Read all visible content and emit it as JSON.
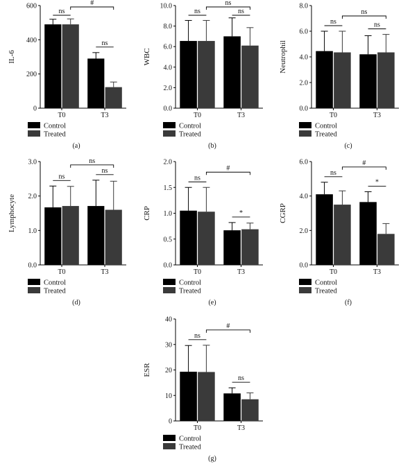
{
  "figure": {
    "legend": [
      "Control",
      "Treated"
    ],
    "colors": {
      "control": "#000000",
      "treated": "#3a3a3a"
    }
  },
  "chart_data": [
    {
      "panel": "(a)",
      "type": "bar",
      "ylabel": "IL-6",
      "categories": [
        "T0",
        "T3"
      ],
      "ylim": [
        0,
        600
      ],
      "yticks": [
        "0",
        "200",
        "400",
        "600"
      ],
      "series": [
        {
          "name": "Control",
          "values": [
            490,
            290
          ],
          "errors": [
            30,
            35
          ]
        },
        {
          "name": "Treated",
          "values": [
            490,
            123
          ],
          "errors": [
            32,
            30
          ]
        }
      ],
      "annotations": [
        {
          "text": "ns",
          "between": "Control T0 vs Treated T0"
        },
        {
          "text": "ns",
          "between": "Control T3 vs Treated T3"
        },
        {
          "text": "#",
          "between": "Treated T0 vs Treated T3"
        }
      ]
    },
    {
      "panel": "(b)",
      "type": "bar",
      "ylabel": "WBC",
      "categories": [
        "T0",
        "T3"
      ],
      "ylim": [
        0,
        10
      ],
      "yticks": [
        "0.0",
        "2.0",
        "4.0",
        "6.0",
        "8.0",
        "10.0"
      ],
      "series": [
        {
          "name": "Control",
          "values": [
            6.55,
            7.0
          ],
          "errors": [
            2.0,
            1.8
          ]
        },
        {
          "name": "Treated",
          "values": [
            6.55,
            6.1
          ],
          "errors": [
            2.0,
            1.75
          ]
        }
      ],
      "annotations": [
        {
          "text": "ns",
          "between": "Control T0 vs Treated T0"
        },
        {
          "text": "ns",
          "between": "Control T3 vs Treated T3"
        },
        {
          "text": "ns",
          "between": "Treated T0 vs Treated T3"
        }
      ]
    },
    {
      "panel": "(c)",
      "type": "bar",
      "ylabel": "Neutrophil",
      "categories": [
        "T0",
        "T3"
      ],
      "ylim": [
        0,
        8
      ],
      "yticks": [
        "0.0",
        "2.0",
        "4.0",
        "6.0",
        "8.0"
      ],
      "series": [
        {
          "name": "Control",
          "values": [
            4.45,
            4.2
          ],
          "errors": [
            1.55,
            1.45
          ]
        },
        {
          "name": "Treated",
          "values": [
            4.35,
            4.35
          ],
          "errors": [
            1.65,
            1.4
          ]
        }
      ],
      "annotations": [
        {
          "text": "ns",
          "between": "Control T0 vs Treated T0"
        },
        {
          "text": "ns",
          "between": "Control T3 vs Treated T3"
        },
        {
          "text": "ns",
          "between": "Treated T0 vs Treated T3"
        }
      ]
    },
    {
      "panel": "(d)",
      "type": "bar",
      "ylabel": "Lymphocyte",
      "categories": [
        "T0",
        "T3"
      ],
      "ylim": [
        0,
        3
      ],
      "yticks": [
        "0.0",
        "1.0",
        "2.0",
        "3.0"
      ],
      "series": [
        {
          "name": "Control",
          "values": [
            1.67,
            1.71
          ],
          "errors": [
            0.62,
            0.75
          ]
        },
        {
          "name": "Treated",
          "values": [
            1.71,
            1.6
          ],
          "errors": [
            0.57,
            0.83
          ]
        }
      ],
      "annotations": [
        {
          "text": "ns",
          "between": "Control T0 vs Treated T0"
        },
        {
          "text": "ns",
          "between": "Control T3 vs Treated T3"
        },
        {
          "text": "ns",
          "between": "Treated T0 vs Treated T3"
        }
      ]
    },
    {
      "panel": "(e)",
      "type": "bar",
      "ylabel": "CRP",
      "categories": [
        "T0",
        "T3"
      ],
      "ylim": [
        0,
        2
      ],
      "yticks": [
        "0.0",
        "0.5",
        "1.0",
        "1.5",
        "2.0"
      ],
      "series": [
        {
          "name": "Control",
          "values": [
            1.05,
            0.67
          ],
          "errors": [
            0.45,
            0.15
          ]
        },
        {
          "name": "Treated",
          "values": [
            1.03,
            0.69
          ],
          "errors": [
            0.47,
            0.12
          ]
        }
      ],
      "annotations": [
        {
          "text": "ns",
          "between": "Control T0 vs Treated T0"
        },
        {
          "text": "*",
          "between": "Control T3 vs Treated T3"
        },
        {
          "text": "#",
          "between": "Treated T0 vs Treated T3"
        }
      ]
    },
    {
      "panel": "(f)",
      "type": "bar",
      "ylabel": "CGRP",
      "categories": [
        "T0",
        "T3"
      ],
      "ylim": [
        0,
        6
      ],
      "yticks": [
        "0.0",
        "2.0",
        "4.0",
        "6.0"
      ],
      "series": [
        {
          "name": "Control",
          "values": [
            4.1,
            3.65
          ],
          "errors": [
            0.7,
            0.6
          ]
        },
        {
          "name": "Treated",
          "values": [
            3.5,
            1.8
          ],
          "errors": [
            0.8,
            0.6
          ]
        }
      ],
      "annotations": [
        {
          "text": "ns",
          "between": "Control T0 vs Treated T0"
        },
        {
          "text": "*",
          "between": "Control T3 vs Treated T3"
        },
        {
          "text": "#",
          "between": "Treated T0 vs Treated T3"
        }
      ]
    },
    {
      "panel": "(g)",
      "type": "bar",
      "ylabel": "ESR",
      "categories": [
        "T0",
        "T3"
      ],
      "ylim": [
        0,
        40
      ],
      "yticks": [
        "0",
        "10",
        "20",
        "30",
        "40"
      ],
      "series": [
        {
          "name": "Control",
          "values": [
            19.3,
            10.8
          ],
          "errors": [
            10.3,
            2.2
          ]
        },
        {
          "name": "Treated",
          "values": [
            19.2,
            8.5
          ],
          "errors": [
            10.5,
            2.5
          ]
        }
      ],
      "annotations": [
        {
          "text": "ns",
          "between": "Control T0 vs Treated T0"
        },
        {
          "text": "ns",
          "between": "Control T3 vs Treated T3"
        },
        {
          "text": "#",
          "between": "Treated T0 vs Treated T3"
        }
      ]
    }
  ]
}
